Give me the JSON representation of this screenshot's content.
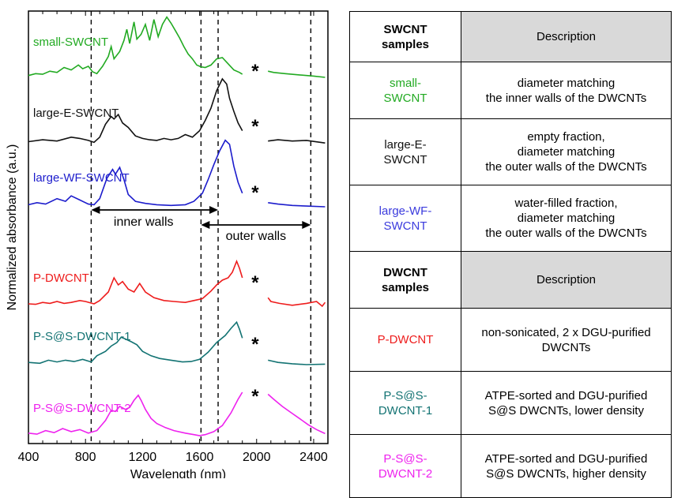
{
  "chart_data": {
    "type": "line",
    "xlabel": "Wavelength (nm)",
    "ylabel": "Normalized absorbance (a.u.)",
    "xlim": [
      400,
      2500
    ],
    "x_ticks": [
      400,
      800,
      1200,
      1600,
      2000,
      2400
    ],
    "break_marker": "*",
    "series": [
      {
        "name": "small-SWCNT",
        "color": "#22aa22",
        "points": [
          [
            400,
            0.03
          ],
          [
            450,
            0.06
          ],
          [
            500,
            0.05
          ],
          [
            550,
            0.1
          ],
          [
            600,
            0.08
          ],
          [
            650,
            0.16
          ],
          [
            700,
            0.12
          ],
          [
            750,
            0.2
          ],
          [
            780,
            0.14
          ],
          [
            820,
            0.18
          ],
          [
            850,
            0.09
          ],
          [
            880,
            0.06
          ],
          [
            920,
            0.18
          ],
          [
            960,
            0.34
          ],
          [
            980,
            0.5
          ],
          [
            1000,
            0.3
          ],
          [
            1040,
            0.42
          ],
          [
            1070,
            0.6
          ],
          [
            1090,
            0.78
          ],
          [
            1110,
            0.55
          ],
          [
            1140,
            0.9
          ],
          [
            1160,
            0.62
          ],
          [
            1190,
            0.7
          ],
          [
            1220,
            0.86
          ],
          [
            1250,
            0.6
          ],
          [
            1280,
            0.94
          ],
          [
            1310,
            0.66
          ],
          [
            1340,
            0.86
          ],
          [
            1370,
            0.98
          ],
          [
            1400,
            0.88
          ],
          [
            1430,
            0.76
          ],
          [
            1460,
            0.64
          ],
          [
            1490,
            0.5
          ],
          [
            1520,
            0.38
          ],
          [
            1550,
            0.3
          ],
          [
            1580,
            0.2
          ],
          [
            1610,
            0.17
          ],
          [
            1640,
            0.16
          ],
          [
            1680,
            0.2
          ],
          [
            1720,
            0.3
          ],
          [
            1760,
            0.32
          ],
          [
            1800,
            0.22
          ],
          [
            1840,
            0.12
          ],
          [
            1880,
            0.08
          ],
          [
            1900,
            0.05
          ]
        ],
        "points_right": [
          [
            2080,
            0.1
          ],
          [
            2120,
            0.08
          ],
          [
            2200,
            0.06
          ],
          [
            2300,
            0.04
          ],
          [
            2400,
            0.02
          ],
          [
            2480,
            0.0
          ]
        ]
      },
      {
        "name": "large-E-SWCNT",
        "color": "#111111",
        "points": [
          [
            400,
            0.03
          ],
          [
            500,
            0.06
          ],
          [
            600,
            0.04
          ],
          [
            700,
            0.1
          ],
          [
            760,
            0.08
          ],
          [
            820,
            0.05
          ],
          [
            860,
            0.02
          ],
          [
            900,
            0.1
          ],
          [
            940,
            0.3
          ],
          [
            980,
            0.42
          ],
          [
            1000,
            0.38
          ],
          [
            1030,
            0.45
          ],
          [
            1060,
            0.32
          ],
          [
            1100,
            0.25
          ],
          [
            1150,
            0.12
          ],
          [
            1200,
            0.08
          ],
          [
            1250,
            0.06
          ],
          [
            1300,
            0.05
          ],
          [
            1350,
            0.08
          ],
          [
            1400,
            0.06
          ],
          [
            1450,
            0.08
          ],
          [
            1500,
            0.14
          ],
          [
            1550,
            0.1
          ],
          [
            1600,
            0.2
          ],
          [
            1640,
            0.36
          ],
          [
            1680,
            0.55
          ],
          [
            1720,
            0.82
          ],
          [
            1760,
            1.0
          ],
          [
            1790,
            0.92
          ],
          [
            1810,
            0.7
          ],
          [
            1840,
            0.5
          ],
          [
            1870,
            0.32
          ],
          [
            1900,
            0.2
          ]
        ],
        "points_right": [
          [
            2080,
            0.04
          ],
          [
            2150,
            0.06
          ],
          [
            2250,
            0.04
          ],
          [
            2350,
            0.05
          ],
          [
            2450,
            0.02
          ],
          [
            2480,
            0.01
          ]
        ]
      },
      {
        "name": "large-WF-SWCNT",
        "color": "#1c1ccc",
        "points": [
          [
            400,
            0.03
          ],
          [
            460,
            0.06
          ],
          [
            520,
            0.04
          ],
          [
            600,
            0.12
          ],
          [
            660,
            0.08
          ],
          [
            700,
            0.16
          ],
          [
            760,
            0.1
          ],
          [
            820,
            0.04
          ],
          [
            860,
            0.03
          ],
          [
            900,
            0.12
          ],
          [
            950,
            0.42
          ],
          [
            990,
            0.55
          ],
          [
            1010,
            0.48
          ],
          [
            1040,
            0.58
          ],
          [
            1070,
            0.4
          ],
          [
            1100,
            0.18
          ],
          [
            1150,
            0.08
          ],
          [
            1220,
            0.05
          ],
          [
            1300,
            0.03
          ],
          [
            1400,
            0.02
          ],
          [
            1500,
            0.03
          ],
          [
            1560,
            0.08
          ],
          [
            1620,
            0.2
          ],
          [
            1660,
            0.4
          ],
          [
            1700,
            0.62
          ],
          [
            1740,
            0.82
          ],
          [
            1780,
            0.98
          ],
          [
            1810,
            0.92
          ],
          [
            1840,
            0.6
          ],
          [
            1870,
            0.36
          ],
          [
            1900,
            0.2
          ]
        ],
        "points_right": [
          [
            2080,
            0.06
          ],
          [
            2150,
            0.04
          ],
          [
            2250,
            0.02
          ],
          [
            2350,
            0.01
          ],
          [
            2480,
            0.0
          ]
        ]
      },
      {
        "name": "P-DWCNT",
        "color": "#ee1c1c",
        "points": [
          [
            400,
            0.05
          ],
          [
            450,
            0.04
          ],
          [
            500,
            0.08
          ],
          [
            550,
            0.06
          ],
          [
            600,
            0.1
          ],
          [
            650,
            0.06
          ],
          [
            700,
            0.08
          ],
          [
            760,
            0.12
          ],
          [
            800,
            0.1
          ],
          [
            860,
            0.05
          ],
          [
            900,
            0.12
          ],
          [
            960,
            0.3
          ],
          [
            1000,
            0.6
          ],
          [
            1030,
            0.45
          ],
          [
            1060,
            0.52
          ],
          [
            1100,
            0.36
          ],
          [
            1140,
            0.3
          ],
          [
            1180,
            0.48
          ],
          [
            1220,
            0.3
          ],
          [
            1280,
            0.18
          ],
          [
            1350,
            0.12
          ],
          [
            1420,
            0.1
          ],
          [
            1500,
            0.08
          ],
          [
            1560,
            0.12
          ],
          [
            1620,
            0.16
          ],
          [
            1680,
            0.32
          ],
          [
            1720,
            0.45
          ],
          [
            1760,
            0.55
          ],
          [
            1800,
            0.6
          ],
          [
            1830,
            0.72
          ],
          [
            1860,
            0.95
          ],
          [
            1880,
            0.8
          ],
          [
            1900,
            0.6
          ]
        ],
        "points_right": [
          [
            2080,
            0.18
          ],
          [
            2100,
            0.1
          ],
          [
            2160,
            0.06
          ],
          [
            2250,
            0.02
          ],
          [
            2350,
            0.06
          ],
          [
            2420,
            0.1
          ],
          [
            2460,
            0.0
          ],
          [
            2480,
            0.08
          ]
        ]
      },
      {
        "name": "P-S@S-DWCNT-1",
        "color": "#137373",
        "points": [
          [
            400,
            0.05
          ],
          [
            480,
            0.03
          ],
          [
            540,
            0.1
          ],
          [
            600,
            0.06
          ],
          [
            660,
            0.1
          ],
          [
            720,
            0.07
          ],
          [
            780,
            0.12
          ],
          [
            840,
            0.06
          ],
          [
            880,
            0.2
          ],
          [
            940,
            0.3
          ],
          [
            980,
            0.42
          ],
          [
            1020,
            0.5
          ],
          [
            1050,
            0.62
          ],
          [
            1080,
            0.58
          ],
          [
            1120,
            0.52
          ],
          [
            1160,
            0.45
          ],
          [
            1200,
            0.3
          ],
          [
            1260,
            0.2
          ],
          [
            1320,
            0.14
          ],
          [
            1400,
            0.1
          ],
          [
            1480,
            0.06
          ],
          [
            1540,
            0.07
          ],
          [
            1600,
            0.12
          ],
          [
            1660,
            0.28
          ],
          [
            1720,
            0.5
          ],
          [
            1780,
            0.66
          ],
          [
            1820,
            0.82
          ],
          [
            1860,
            0.96
          ],
          [
            1880,
            0.8
          ],
          [
            1900,
            0.6
          ]
        ],
        "points_right": [
          [
            2080,
            0.1
          ],
          [
            2150,
            0.05
          ],
          [
            2250,
            0.02
          ],
          [
            2350,
            0.0
          ],
          [
            2480,
            0.01
          ]
        ]
      },
      {
        "name": "P-S@S-DWCNT-2",
        "color": "#ee22ee",
        "points": [
          [
            400,
            0.05
          ],
          [
            460,
            0.03
          ],
          [
            520,
            0.1
          ],
          [
            580,
            0.06
          ],
          [
            640,
            0.14
          ],
          [
            700,
            0.08
          ],
          [
            760,
            0.12
          ],
          [
            820,
            0.05
          ],
          [
            880,
            0.1
          ],
          [
            940,
            0.3
          ],
          [
            980,
            0.5
          ],
          [
            1010,
            0.48
          ],
          [
            1040,
            0.58
          ],
          [
            1080,
            0.52
          ],
          [
            1110,
            0.56
          ],
          [
            1140,
            0.7
          ],
          [
            1170,
            0.8
          ],
          [
            1190,
            0.7
          ],
          [
            1220,
            0.52
          ],
          [
            1260,
            0.34
          ],
          [
            1300,
            0.24
          ],
          [
            1360,
            0.16
          ],
          [
            1420,
            0.1
          ],
          [
            1500,
            0.05
          ],
          [
            1560,
            0.02
          ],
          [
            1600,
            0.0
          ],
          [
            1640,
            0.02
          ],
          [
            1700,
            0.08
          ],
          [
            1760,
            0.2
          ],
          [
            1820,
            0.45
          ],
          [
            1870,
            0.72
          ],
          [
            1900,
            0.86
          ]
        ],
        "points_right": [
          [
            2080,
            0.82
          ],
          [
            2120,
            0.72
          ],
          [
            2180,
            0.58
          ],
          [
            2240,
            0.46
          ],
          [
            2300,
            0.34
          ],
          [
            2360,
            0.22
          ],
          [
            2420,
            0.12
          ],
          [
            2480,
            0.04
          ]
        ]
      }
    ],
    "vlines": [
      840,
      1610,
      1730,
      2380
    ],
    "annotations": {
      "inner": "inner walls",
      "outer": "outer walls",
      "inner_range": [
        840,
        1730
      ],
      "outer_range": [
        1610,
        2380
      ]
    }
  },
  "table": {
    "swcnt_header": [
      "SWCNT",
      "samples"
    ],
    "dwcnt_header": [
      "DWCNT",
      "samples"
    ],
    "description_header": "Description",
    "swcnt_rows": [
      {
        "sample": [
          "small-",
          "SWCNT"
        ],
        "color": "#22aa22",
        "description": [
          "diameter matching",
          "the inner walls of the DWCNTs"
        ]
      },
      {
        "sample": [
          "large-E-",
          "SWCNT"
        ],
        "color": "#111111",
        "description": [
          "empty fraction,",
          "diameter matching",
          "the outer walls of the DWCNTs"
        ]
      },
      {
        "sample": [
          "large-WF-",
          "SWCNT"
        ],
        "color": "#3b3bdd",
        "description": [
          "water-filled fraction,",
          "diameter matching",
          "the outer walls of the DWCNTs"
        ]
      }
    ],
    "dwcnt_rows": [
      {
        "sample": [
          "P-DWCNT"
        ],
        "color": "#ee1c1c",
        "description": [
          "non-sonicated, 2 x DGU-purified",
          "DWCNTs"
        ]
      },
      {
        "sample": [
          "P-S@S-",
          "DWCNT-1"
        ],
        "color": "#137373",
        "description": [
          "ATPE-sorted and DGU-purified",
          "S@S DWCNTs, lower density"
        ]
      },
      {
        "sample": [
          "P-S@S-",
          "DWCNT-2"
        ],
        "color": "#ee22ee",
        "description": [
          "ATPE-sorted and DGU-purified",
          "S@S DWCNTs, higher density"
        ]
      }
    ]
  }
}
